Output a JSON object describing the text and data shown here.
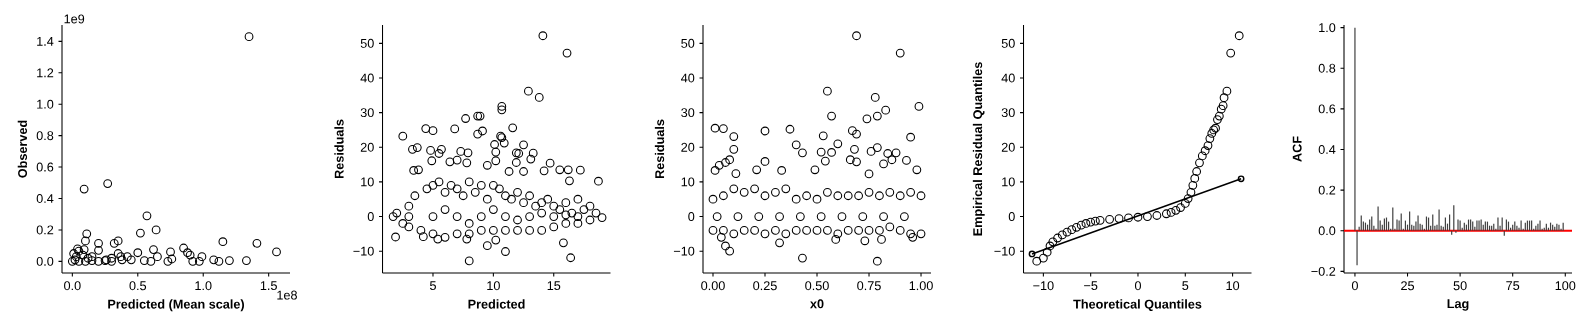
{
  "chart_data": [
    {
      "type": "scatter",
      "xlabel": "Predicted (Mean scale)",
      "ylabel": "Observed",
      "color": "#000000",
      "marker": "circle",
      "xlim": [
        -0.079,
        1.663
      ],
      "ylim": [
        -0.074,
        1.504
      ],
      "xticks": [
        {
          "value": 0,
          "label": "0.0"
        },
        {
          "value": 0.5,
          "label": "0.5"
        },
        {
          "value": 1,
          "label": "1.0"
        },
        {
          "value": 1.5,
          "label": "1.5"
        }
      ],
      "yticks": [
        {
          "value": 0,
          "label": "0.0"
        },
        {
          "value": 0.2,
          "label": "0.2"
        },
        {
          "value": 0.4,
          "label": "0.4"
        },
        {
          "value": 0.6,
          "label": "0.6"
        },
        {
          "value": 0.8,
          "label": "0.8"
        },
        {
          "value": 1.0,
          "label": "1.0"
        },
        {
          "value": 1.2,
          "label": "1.2"
        },
        {
          "value": 1.4,
          "label": "1.4"
        }
      ],
      "annotations": [
        "1e9",
        "1e8"
      ],
      "x": [
        1.35,
        0.09,
        0.27,
        0.57,
        0.64,
        0.52,
        0.11,
        0.1,
        0.2,
        0.35,
        0.32,
        0.62,
        1.15,
        1.41,
        1.56,
        0.85,
        0.88,
        0.9,
        0.75,
        0.99,
        1.08,
        1.12,
        1.2,
        1.33,
        0.97,
        0.92,
        0.76,
        0.73,
        0.65,
        0.5,
        0.35,
        0.2,
        0.05,
        0.09,
        0.04,
        0.0,
        0.02,
        0.05,
        0.1,
        0.15,
        0.2,
        0.25,
        0.3,
        0.38,
        0.45,
        0.55,
        0.6,
        0.42,
        0.37,
        0.15,
        0.08,
        0.12,
        0.03,
        0.01,
        0.3,
        0.26
      ],
      "values": [
        1.43,
        0.46,
        0.495,
        0.29,
        0.2,
        0.18,
        0.175,
        0.13,
        0.115,
        0.13,
        0.115,
        0.075,
        0.125,
        0.115,
        0.06,
        0.085,
        0.055,
        0.04,
        0.06,
        0.03,
        0.01,
        0.0,
        0.005,
        0.005,
        0.0,
        0.0,
        0.015,
        0.0,
        0.03,
        0.055,
        0.05,
        0.07,
        0.065,
        0.075,
        0.08,
        0.0,
        0.01,
        0.0,
        0.0,
        0.005,
        0.0,
        0.005,
        0.0,
        0.01,
        0.01,
        0.005,
        0.0,
        0.03,
        0.03,
        0.03,
        0.04,
        0.02,
        0.03,
        0.05,
        0.02,
        0.01
      ]
    },
    {
      "type": "scatter",
      "xlabel": "Predicted",
      "ylabel": "Residuals",
      "color": "#000000",
      "marker": "circle",
      "xlim": [
        0.82,
        19.7
      ],
      "ylim": [
        -16.3,
        55.3
      ],
      "xticks": [
        5,
        10,
        15
      ],
      "yticks": [
        {
          "value": -10,
          "label": "−10"
        },
        0,
        10,
        20,
        30,
        40,
        50
      ],
      "x": [
        14.1,
        16.1,
        12.9,
        13.8,
        10.7,
        10.7,
        8.7,
        8.9,
        7.7,
        6.8,
        4.4,
        5.0,
        2.5,
        8.7,
        9.1,
        11.6,
        10.6,
        10.7,
        10.9,
        10.1,
        12.5,
        3.3,
        3.7,
        4.8,
        5.7,
        5.5,
        7.3,
        7.9,
        10.2,
        11.9,
        12.1,
        13.3,
        4.9,
        6.4,
        7.0,
        7.8,
        10.2,
        11.9,
        13.1,
        14.7,
        3.4,
        3.8,
        9.5,
        11.3,
        12.5,
        14.2,
        15.5,
        16.2,
        17.2,
        16.3,
        18.7,
        1.9,
        5.4,
        9.5,
        8.0,
        11.0,
        16.4,
        15.8,
        10.2,
        7.8,
        4.2,
        1.7,
        2,
        2.5,
        3,
        3,
        3.5,
        4,
        4.5,
        5,
        5,
        5.5,
        6,
        6,
        6.5,
        7,
        7,
        7.5,
        8,
        8,
        8.5,
        9,
        9,
        9.5,
        10,
        10,
        10.5,
        11,
        11,
        11.5,
        12,
        12,
        12.5,
        13,
        13,
        13.5,
        14,
        14,
        14.5,
        15,
        15,
        15.5,
        16,
        16,
        16.5,
        17,
        17,
        17.5,
        18,
        18,
        18.5,
        19,
        3,
        5,
        7,
        9,
        11,
        13,
        15,
        17,
        6,
        8,
        10,
        12,
        14,
        16
      ],
      "values": [
        52.2,
        47.2,
        36.2,
        34.4,
        31.8,
        30.8,
        29,
        29,
        28.3,
        25.3,
        25.4,
        24.8,
        23.2,
        23.8,
        24.7,
        25.6,
        23.2,
        22.8,
        21.2,
        20.8,
        20.7,
        19.4,
        19.9,
        19.1,
        19.4,
        18.2,
        18.8,
        18.4,
        18.6,
        18.4,
        18.2,
        18.3,
        16.1,
        15.8,
        16.3,
        15.5,
        16.1,
        15.6,
        16.6,
        15.4,
        13.3,
        13.5,
        14.8,
        13,
        13,
        13.2,
        13.5,
        13.5,
        13.4,
        10.3,
        10.2,
        -5.9,
        -6.5,
        -8.4,
        -12.8,
        -10.1,
        -11.9,
        -7.6,
        -6.8,
        -6.5,
        -5.8,
        0,
        1,
        -2,
        3,
        -3,
        6,
        -4,
        8,
        9,
        -5,
        10,
        7,
        -6,
        9,
        8,
        -5,
        6,
        10,
        -5,
        7,
        9,
        -4,
        5,
        9,
        -4,
        8,
        6,
        -4,
        5,
        7,
        -4,
        4,
        6,
        -4,
        3,
        4,
        -4,
        5,
        3,
        -3,
        2,
        4,
        -2,
        1,
        5,
        -2,
        2,
        3,
        -1,
        1,
        -0.3,
        0,
        0,
        0,
        0,
        0,
        0,
        0,
        0,
        2,
        -2,
        2,
        -1,
        1,
        0.5
      ]
    },
    {
      "type": "scatter",
      "xlabel": "x0",
      "ylabel": "Residuals",
      "color": "#000000",
      "marker": "circle",
      "xlim": [
        -0.048,
        1.048
      ],
      "ylim": [
        -16.3,
        55.3
      ],
      "xticks": [
        {
          "value": 0,
          "label": "0.00"
        },
        {
          "value": 0.25,
          "label": "0.25"
        },
        {
          "value": 0.5,
          "label": "0.50"
        },
        {
          "value": 0.75,
          "label": "0.75"
        },
        {
          "value": 1,
          "label": "1.00"
        }
      ],
      "yticks": [
        {
          "value": -10,
          "label": "−10"
        },
        0,
        10,
        20,
        30,
        40,
        50
      ],
      "x": [
        0.69,
        0.9,
        0.55,
        0.78,
        0.99,
        0.83,
        0.57,
        0.79,
        0.74,
        0.01,
        0.05,
        0.25,
        0.37,
        0.67,
        0.69,
        0.1,
        0.53,
        0.95,
        0.4,
        0.6,
        0.1,
        0.43,
        0.52,
        0.57,
        0.68,
        0.76,
        0.79,
        0.84,
        0.88,
        0.08,
        0.06,
        0.03,
        0.25,
        0.54,
        0.66,
        0.69,
        0.86,
        0.93,
        0.01,
        0.21,
        0.33,
        0.49,
        0.98,
        0.11,
        0.75,
        0.82,
        0.43,
        0.79,
        0.08,
        0.06,
        0.32,
        0.73,
        0.81,
        0.59,
        0.04,
        0.96,
        0.0,
        0.0,
        0.05,
        0.05,
        0.1,
        0.1,
        0.15,
        0.15,
        0.2,
        0.2,
        0.25,
        0.25,
        0.3,
        0.3,
        0.35,
        0.35,
        0.4,
        0.4,
        0.45,
        0.45,
        0.5,
        0.5,
        0.55,
        0.55,
        0.6,
        0.6,
        0.65,
        0.65,
        0.7,
        0.7,
        0.75,
        0.75,
        0.8,
        0.8,
        0.85,
        0.85,
        0.9,
        0.9,
        0.95,
        0.95,
        1.0,
        1.0,
        0.02,
        0.12,
        0.22,
        0.32,
        0.42,
        0.52,
        0.62,
        0.72,
        0.82,
        0.92
      ],
      "values": [
        52.2,
        47.2,
        36.2,
        34.4,
        31.8,
        30.7,
        29,
        29,
        28.2,
        25.5,
        25.4,
        24.7,
        25.2,
        24.8,
        23.8,
        23.1,
        23.3,
        22.9,
        20.7,
        21,
        19.4,
        18.4,
        18.6,
        18.5,
        19.4,
        18.8,
        19.9,
        18.2,
        18.4,
        16.4,
        15.6,
        14.8,
        15.9,
        16,
        16.4,
        15.8,
        16.4,
        16.2,
        13.3,
        13.5,
        13.3,
        13.5,
        13.5,
        12.4,
        12.3,
        15.2,
        -12,
        -12.9,
        -10,
        -8.5,
        -7.6,
        -7,
        -6.6,
        -6.6,
        -6,
        -6,
        5,
        -4,
        6,
        -4,
        8,
        -5,
        7,
        -4,
        8,
        -4,
        6,
        -5,
        7,
        -4,
        8,
        -5,
        5,
        -4,
        6,
        -4,
        5,
        -4,
        7,
        -4,
        6,
        -5,
        6,
        -4,
        6,
        -4,
        7,
        -4,
        6,
        -4,
        7,
        -3,
        6,
        -4,
        7,
        -5,
        6,
        -5,
        0,
        0,
        0,
        0,
        0,
        0,
        0,
        0,
        0,
        0
      ]
    },
    {
      "type": "scatter",
      "xlabel": "Theoretical Quantiles",
      "ylabel": "Empirical Residual Quantiles",
      "marker": "circle",
      "xlim": [
        -12.1,
        12.0
      ],
      "ylim": [
        -16.3,
        55.3
      ],
      "xticks": [
        {
          "value": -10,
          "label": "−10"
        },
        {
          "value": -5,
          "label": "−5"
        },
        0,
        5,
        10
      ],
      "yticks": [
        {
          "value": -10,
          "label": "−10"
        },
        0,
        10,
        20,
        30,
        40,
        50
      ],
      "series": [
        {
          "type": "scatter",
          "color": "#000000",
          "x": [
            -10.7,
            -10,
            -9.6,
            -9.3,
            -9,
            -8.5,
            -8,
            -7.5,
            -7,
            -6.5,
            -6,
            -5.5,
            -5,
            -4.5,
            -4,
            -3,
            -2,
            -1,
            0,
            1,
            2,
            3,
            3.5,
            4,
            4.5,
            5,
            5.3,
            5.6,
            5.8,
            6,
            6.2,
            6.5,
            6.8,
            7.1,
            7.4,
            7.6,
            7.8,
            8,
            8.2,
            8.4,
            8.6,
            8.8,
            9,
            9.1,
            9.4,
            9.8,
            10.7
          ],
          "values": [
            -12.9,
            -12,
            -10.3,
            -8.5,
            -7.3,
            -6.2,
            -5.3,
            -4.5,
            -3.8,
            -3.1,
            -2.5,
            -2,
            -1.6,
            -1.3,
            -1.1,
            -0.8,
            -0.6,
            -0.4,
            -0.2,
            0,
            0.3,
            0.8,
            1.2,
            1.8,
            2.6,
            3.8,
            5.2,
            7,
            9,
            11,
            13,
            15.5,
            17.5,
            19,
            20.5,
            22.5,
            24,
            25,
            25.5,
            28,
            29,
            31,
            32,
            34.3,
            36.2,
            47.2,
            52.2
          ]
        },
        {
          "type": "line",
          "color": "#000000",
          "x": [
            -11.2,
            10.9
          ],
          "values": [
            -10.8,
            10.9
          ]
        }
      ]
    },
    {
      "type": "bar",
      "xlabel": "Lag",
      "ylabel": "ACF",
      "color": "#404040",
      "xlim": [
        -5.2,
        103.2
      ],
      "ylim": [
        -0.208,
        1.013
      ],
      "xticks": [
        0,
        25,
        50,
        75,
        100
      ],
      "yticks": [
        {
          "value": -0.2,
          "label": "−0.2"
        },
        {
          "value": 0,
          "label": "0.0"
        },
        {
          "value": 0.2,
          "label": "0.2"
        },
        {
          "value": 0.4,
          "label": "0.4"
        },
        {
          "value": 0.6,
          "label": "0.6"
        },
        {
          "value": 0.8,
          "label": "0.8"
        },
        {
          "value": 1.0,
          "label": "1.0"
        }
      ],
      "ref_lines": [
        {
          "axis": "y",
          "value": 0,
          "color": "#ff0000"
        }
      ],
      "x": [
        0,
        1,
        2,
        3,
        4,
        5,
        6,
        7,
        8,
        9,
        10,
        11,
        12,
        13,
        14,
        15,
        16,
        17,
        18,
        19,
        20,
        21,
        22,
        23,
        24,
        25,
        26,
        27,
        28,
        29,
        30,
        31,
        32,
        33,
        34,
        35,
        36,
        37,
        38,
        39,
        40,
        41,
        42,
        43,
        44,
        45,
        46,
        47,
        48,
        49,
        50,
        51,
        52,
        53,
        54,
        55,
        56,
        57,
        58,
        59,
        60,
        61,
        62,
        63,
        64,
        65,
        66,
        67,
        68,
        69,
        70,
        71,
        72,
        73,
        74,
        75,
        76,
        77,
        78,
        79,
        80,
        81,
        82,
        83,
        84,
        85,
        86,
        87,
        88,
        89,
        90,
        91,
        92,
        93,
        94,
        95,
        96,
        97,
        98,
        99
      ],
      "values": [
        1.0,
        -0.17,
        0.02,
        0.075,
        0.045,
        0.04,
        0.03,
        0.055,
        0.07,
        0.025,
        0.01,
        0.12,
        0.05,
        0.03,
        0.06,
        0.065,
        0.045,
        0.01,
        0.115,
        0.01,
        0.055,
        0.05,
        0.085,
        0.01,
        0.05,
        0.03,
        0.095,
        0.03,
        0.025,
        0.045,
        0.075,
        0.035,
        0.03,
        0.01,
        0.07,
        0.065,
        0.025,
        0.08,
        0.025,
        0.03,
        0.105,
        0.025,
        0.02,
        0.065,
        0.035,
        0.08,
        -0.02,
        0.125,
        -0.01,
        0.055,
        0.05,
        0.015,
        0.04,
        0.03,
        0.055,
        0.055,
        0.045,
        0.02,
        0.05,
        0.05,
        0.055,
        0.03,
        0.045,
        0.045,
        0.025,
        0.025,
        0.035,
        0.01,
        0.065,
        0.025,
        0.065,
        -0.025,
        0.055,
        0.045,
        0.015,
        0.03,
        0.045,
        0.025,
        0.015,
        0.05,
        0.01,
        0.04,
        0.05,
        0.05,
        0.05,
        0.01,
        0.025,
        0.035,
        0.05,
        0.01,
        0.015,
        0.035,
        0.015,
        0.04,
        0.03,
        0.02,
        0.035,
        0.03,
        0.01,
        0.04
      ]
    }
  ]
}
